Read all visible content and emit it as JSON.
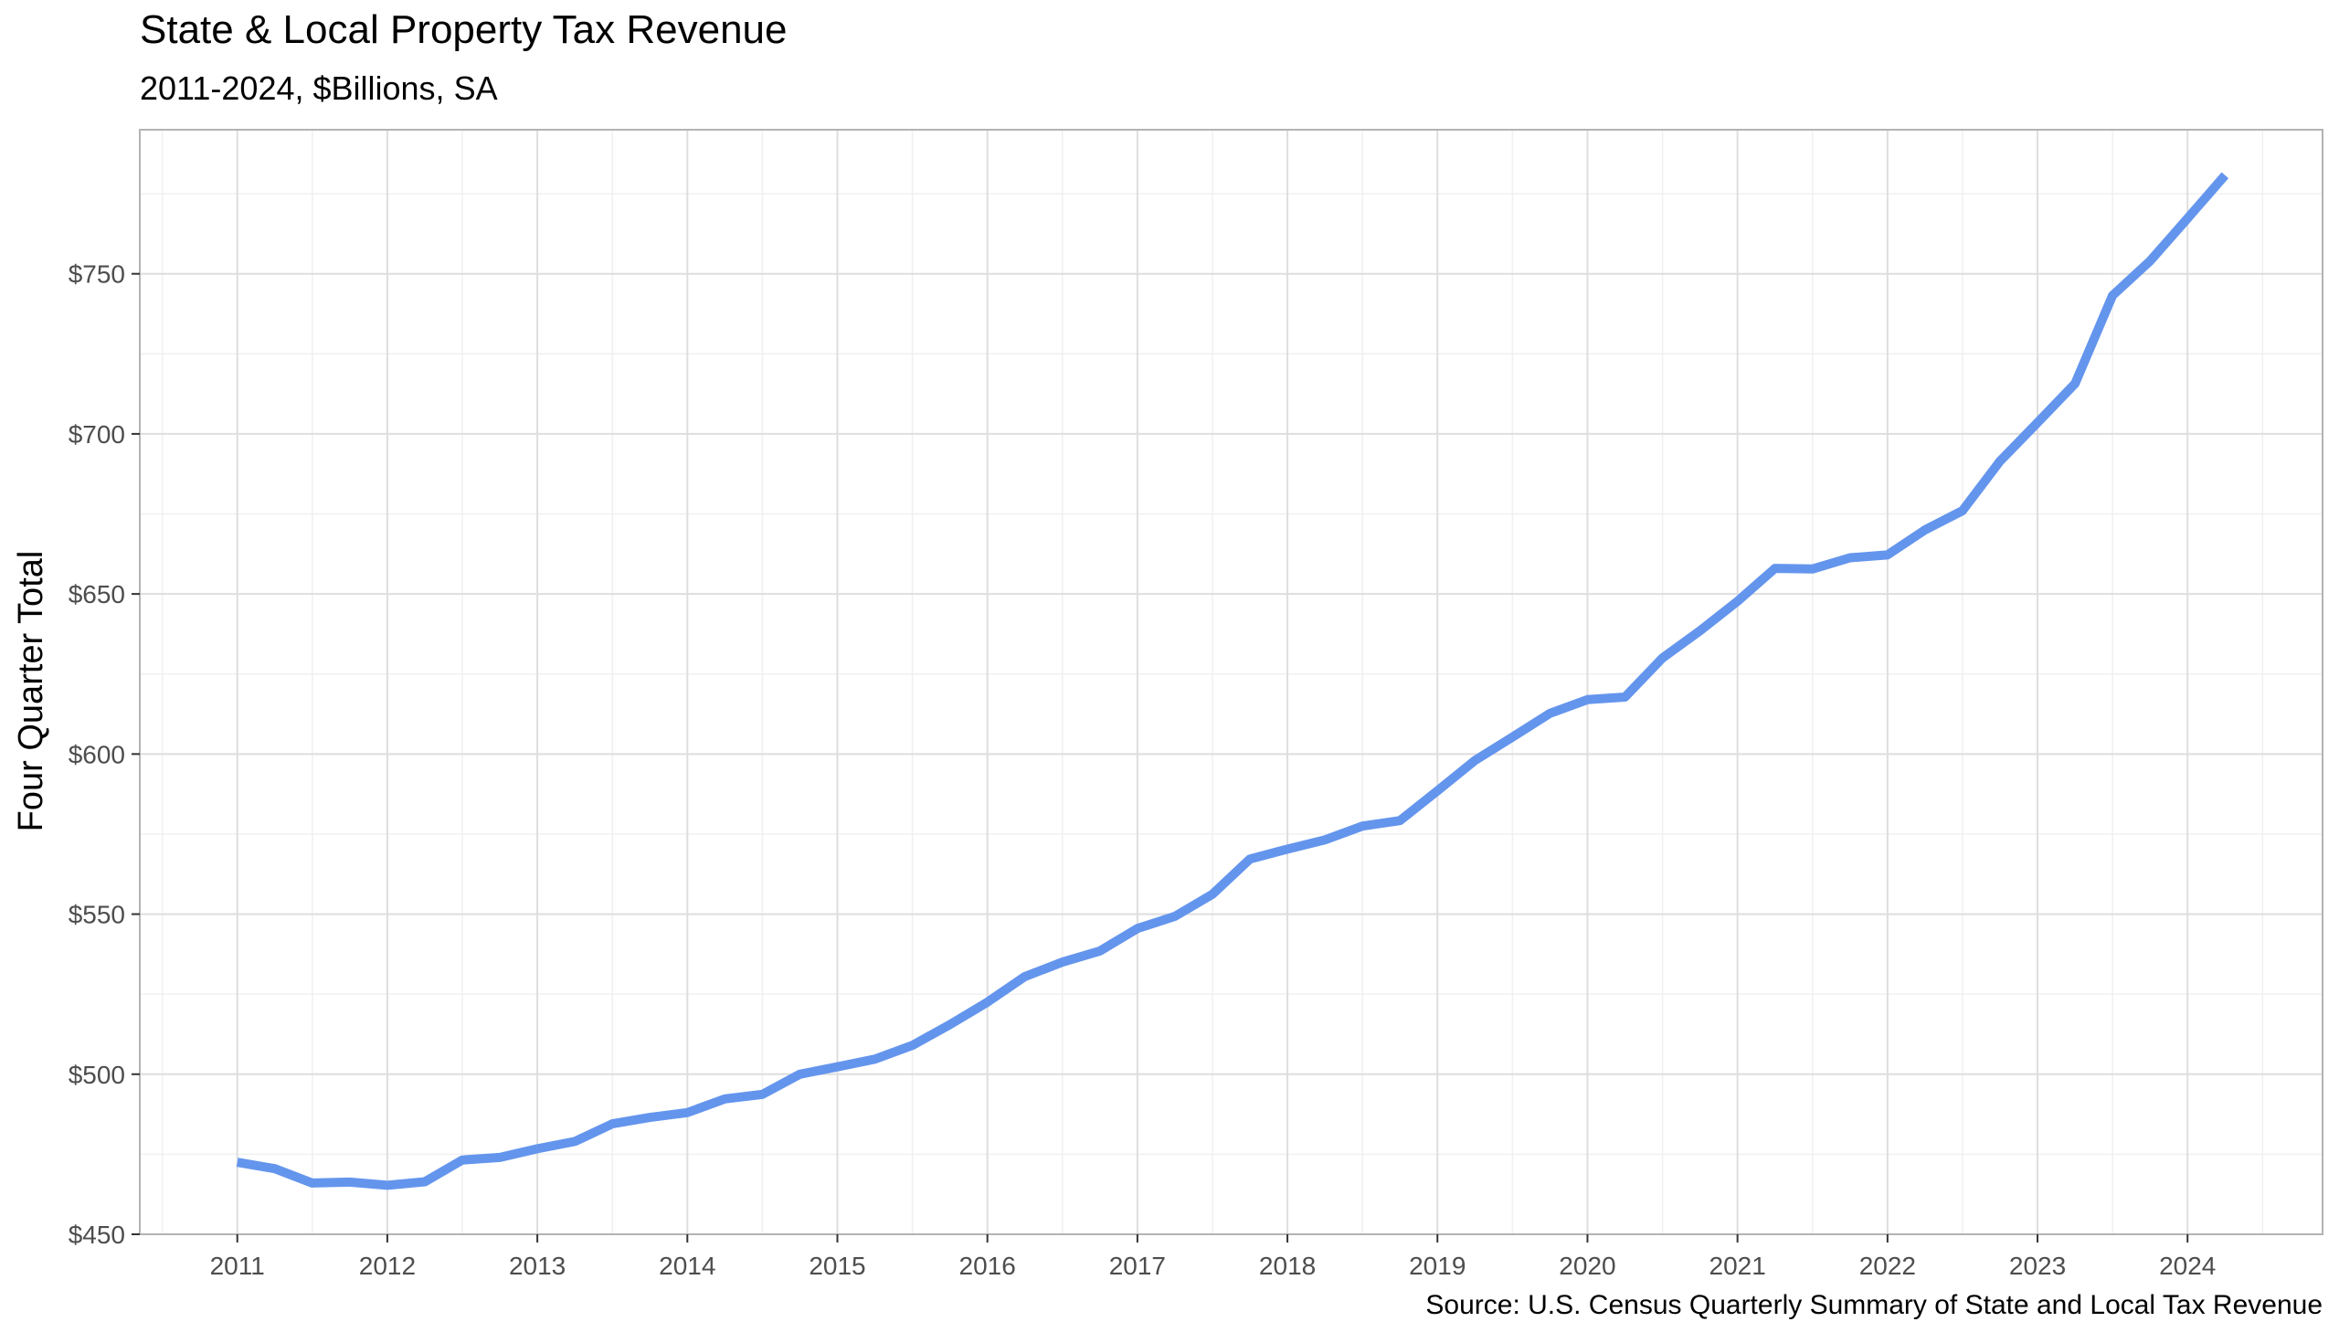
{
  "chart_data": {
    "type": "line",
    "title": "State & Local Property Tax Revenue",
    "subtitle": "2011-2024, $Billions, SA",
    "ylabel": "Four Quarter Total",
    "xlabel": "",
    "caption": "Source: U.S. Census Quarterly Summary of State and Local Tax Revenue",
    "xlim": [
      2010.35,
      2024.9
    ],
    "ylim": [
      450,
      795
    ],
    "x_ticks": [
      2011,
      2012,
      2013,
      2014,
      2015,
      2016,
      2017,
      2018,
      2019,
      2020,
      2021,
      2022,
      2023,
      2024
    ],
    "x_tick_labels": [
      "2011",
      "2012",
      "2013",
      "2014",
      "2015",
      "2016",
      "2017",
      "2018",
      "2019",
      "2020",
      "2021",
      "2022",
      "2023",
      "2024"
    ],
    "y_ticks": [
      450,
      500,
      550,
      600,
      650,
      700,
      750
    ],
    "y_tick_labels": [
      "$450",
      "$500",
      "$550",
      "$600",
      "$650",
      "$700",
      "$750"
    ],
    "grid": true,
    "legend": "none",
    "series_color": "#6495ED",
    "series": [
      {
        "x": [
          2011.0,
          2011.25,
          2011.5,
          2011.75,
          2012.0,
          2012.25,
          2012.5,
          2012.75,
          2013.0,
          2013.25,
          2013.5,
          2013.75,
          2014.0,
          2014.25,
          2014.5,
          2014.75,
          2015.0,
          2015.25,
          2015.5,
          2015.75,
          2016.0,
          2016.25,
          2016.5,
          2016.75,
          2017.0,
          2017.25,
          2017.5,
          2017.75,
          2018.0,
          2018.25,
          2018.5,
          2018.75,
          2019.0,
          2019.25,
          2019.5,
          2019.75,
          2020.0,
          2020.25,
          2020.5,
          2020.75,
          2021.0,
          2021.25,
          2021.5,
          2021.75,
          2022.0,
          2022.25,
          2022.5,
          2022.75,
          2023.0,
          2023.25,
          2023.5,
          2023.75,
          2024.0,
          2024.25
        ],
        "values": [
          472.5,
          470.5,
          466,
          466.3,
          465.3,
          466.4,
          473.2,
          474,
          476.7,
          479,
          484.5,
          486.5,
          488,
          492.3,
          493.7,
          500,
          502.3,
          504.7,
          509,
          515.5,
          522.5,
          530.5,
          535,
          538.5,
          545.5,
          549.3,
          556.2,
          567.2,
          570.3,
          573.2,
          577.5,
          579.2,
          588.5,
          598,
          605.3,
          612.7,
          617,
          617.8,
          630,
          638.5,
          647.7,
          658,
          657.8,
          661.3,
          662.2,
          670,
          676,
          691.5,
          703.5,
          715.7,
          743.2,
          754,
          767.3,
          780.8
        ]
      }
    ]
  }
}
